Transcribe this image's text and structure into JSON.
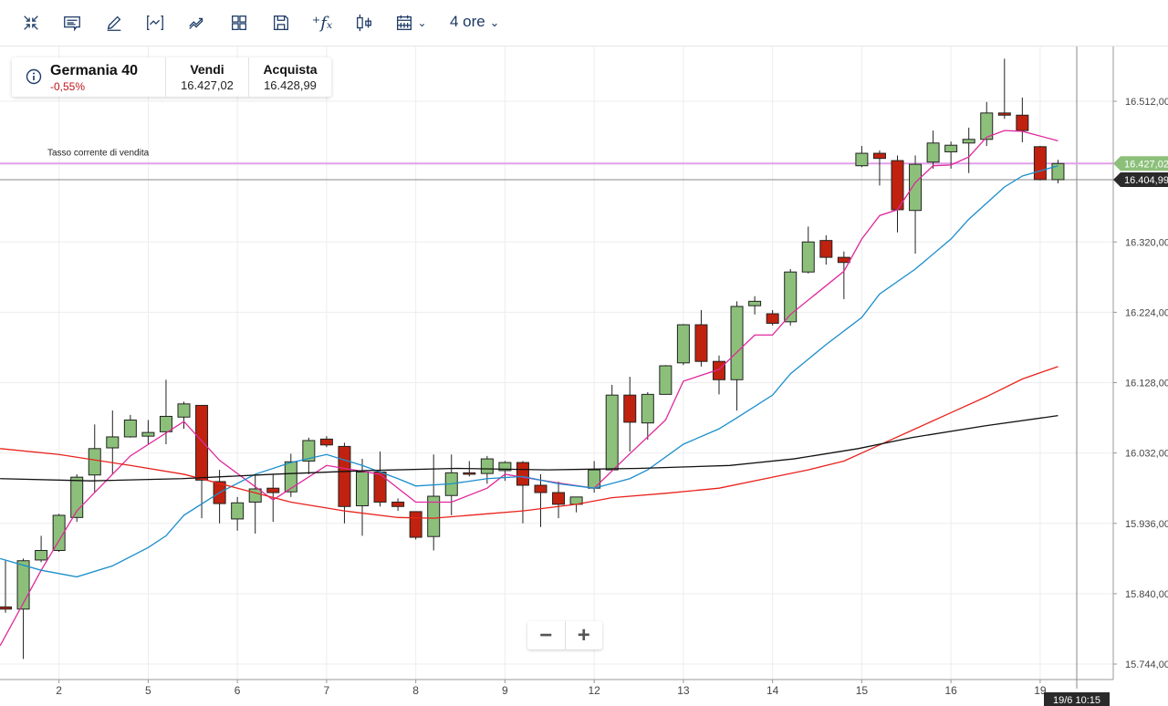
{
  "toolbar": {
    "icons": [
      "collapse-icon",
      "comment-icon",
      "draw-icon",
      "indicator-icon",
      "trend-icon",
      "layout-icon",
      "save-icon",
      "function-icon",
      "candle-type-icon",
      "calendar-icon"
    ],
    "period": "4 ore"
  },
  "instrument": {
    "name": "Germania 40",
    "change": "-0,55%",
    "sell_label": "Vendi",
    "sell": "16.427,02",
    "buy_label": "Acquista",
    "buy": "16.428,99"
  },
  "zoom": {
    "minus": "−",
    "plus": "+"
  },
  "colors": {
    "up": "#8cc07a",
    "down": "#c0220f",
    "ma_fast": "#e0279b",
    "ma_mid": "#1a8ecc",
    "ma_slow": "#e8221c",
    "ma_long": "#111111",
    "sell_line": "#e0a0e8",
    "sell_tag": "#8cc07a"
  },
  "chart_data": {
    "type": "candlestick",
    "sell_line_label": "Tasso corrente di vendita",
    "sell_price": 16427.02,
    "sell_tag": "16.427,02",
    "cursor_price": 16404.99,
    "cursor_tag": "16.404,99",
    "cursor_time": "19/6 10:15",
    "ylim": [
      15730,
      16580
    ],
    "y_ticks": [
      {
        "v": 16512,
        "label": "16.512,00"
      },
      {
        "v": 16320,
        "label": "16.320,00"
      },
      {
        "v": 16224,
        "label": "16.224,00"
      },
      {
        "v": 16128,
        "label": "16.128,00"
      },
      {
        "v": 16032,
        "label": "16.032,00"
      },
      {
        "v": 15936,
        "label": "15.936,00"
      },
      {
        "v": 15840,
        "label": "15.840,00"
      },
      {
        "v": 15744,
        "label": "15.744,00"
      }
    ],
    "x_ticks": [
      {
        "i": 3,
        "label": "2"
      },
      {
        "i": 8,
        "label": "5"
      },
      {
        "i": 13,
        "label": "6"
      },
      {
        "i": 18,
        "label": "7"
      },
      {
        "i": 23,
        "label": "8"
      },
      {
        "i": 28,
        "label": "9"
      },
      {
        "i": 33,
        "label": "12"
      },
      {
        "i": 38,
        "label": "13"
      },
      {
        "i": 43,
        "label": "14"
      },
      {
        "i": 48,
        "label": "15"
      },
      {
        "i": 53,
        "label": "16"
      },
      {
        "i": 58,
        "label": "19"
      }
    ],
    "candles_ohlc": [
      [
        15822,
        15885,
        15814,
        15819
      ],
      [
        15819,
        15888,
        15751,
        15885
      ],
      [
        15886,
        15919,
        15883,
        15899
      ],
      [
        15899,
        15949,
        15897,
        15947
      ],
      [
        15944,
        16003,
        15938,
        15999
      ],
      [
        16002,
        16071,
        15978,
        16038
      ],
      [
        16039,
        16090,
        16003,
        16054
      ],
      [
        16054,
        16084,
        16053,
        16077
      ],
      [
        16055,
        16077,
        16044,
        16060
      ],
      [
        16061,
        16132,
        16044,
        16082
      ],
      [
        16081,
        16102,
        16065,
        16099
      ],
      [
        16097,
        16097,
        15943,
        15995
      ],
      [
        15993,
        16009,
        15936,
        15963
      ],
      [
        15942,
        15972,
        15926,
        15964
      ],
      [
        15965,
        16003,
        15922,
        15983
      ],
      [
        15984,
        16003,
        15938,
        15978
      ],
      [
        15979,
        16031,
        15972,
        16020
      ],
      [
        16021,
        16053,
        16003,
        16049
      ],
      [
        16051,
        16055,
        16040,
        16043
      ],
      [
        16041,
        16046,
        15936,
        15959
      ],
      [
        15960,
        16024,
        15919,
        16006
      ],
      [
        16006,
        16034,
        15959,
        15965
      ],
      [
        15965,
        15970,
        15953,
        15959
      ],
      [
        15952,
        15952,
        15914,
        15917
      ],
      [
        15918,
        16030,
        15899,
        15973
      ],
      [
        15974,
        16030,
        15947,
        16005
      ],
      [
        16005,
        16021,
        16000,
        16003
      ],
      [
        16004,
        16028,
        15990,
        16024
      ],
      [
        16008,
        16021,
        15994,
        16019
      ],
      [
        16019,
        16021,
        15936,
        15988
      ],
      [
        15988,
        16003,
        15931,
        15978
      ],
      [
        15978,
        15993,
        15943,
        15962
      ],
      [
        15962,
        15972,
        15951,
        15972
      ],
      [
        15984,
        16021,
        15978,
        16009
      ],
      [
        16009,
        16125,
        16009,
        16111
      ],
      [
        16111,
        16136,
        16034,
        16074
      ],
      [
        16073,
        16115,
        16050,
        16112
      ],
      [
        16112,
        16152,
        16112,
        16151
      ],
      [
        16155,
        16208,
        16152,
        16207
      ],
      [
        16207,
        16227,
        16150,
        16157
      ],
      [
        16157,
        16165,
        16112,
        16132
      ],
      [
        16132,
        16239,
        16090,
        16232
      ],
      [
        16233,
        16246,
        16221,
        16239
      ],
      [
        16222,
        16227,
        16206,
        16209
      ],
      [
        16211,
        16283,
        16206,
        16279
      ],
      [
        16279,
        16341,
        16277,
        16320
      ],
      [
        16322,
        16329,
        16289,
        16299
      ],
      [
        16299,
        16307,
        16242,
        16292
      ],
      [
        16424,
        16451,
        16422,
        16441
      ],
      [
        16441,
        16445,
        16397,
        16434
      ],
      [
        16431,
        16438,
        16333,
        16364
      ],
      [
        16363,
        16438,
        16304,
        16426
      ],
      [
        16429,
        16472,
        16420,
        16455
      ],
      [
        16443,
        16457,
        16420,
        16452
      ],
      [
        16455,
        16476,
        16414,
        16460
      ],
      [
        16460,
        16511,
        16451,
        16496
      ],
      [
        16496,
        16570,
        16488,
        16493
      ],
      [
        16493,
        16517,
        16456,
        16472
      ],
      [
        16450,
        16451,
        16404,
        16405
      ],
      [
        16405,
        16432,
        16400,
        16427
      ]
    ],
    "ma_lines": [
      {
        "name": "ma_fast",
        "color": "#e0279b",
        "points": [
          [
            -0.3,
            15769
          ],
          [
            2,
            15872
          ],
          [
            4,
            15953
          ],
          [
            7,
            16028
          ],
          [
            10,
            16075
          ],
          [
            12,
            16022
          ],
          [
            15,
            15968
          ],
          [
            18,
            16015
          ],
          [
            21,
            16003
          ],
          [
            23,
            15965
          ],
          [
            25,
            15965
          ],
          [
            27,
            15984
          ],
          [
            28,
            16003
          ],
          [
            31,
            15991
          ],
          [
            33,
            15984
          ],
          [
            35,
            16031
          ],
          [
            37,
            16077
          ],
          [
            38,
            16130
          ],
          [
            40,
            16146
          ],
          [
            42,
            16193
          ],
          [
            43,
            16193
          ],
          [
            44,
            16221
          ],
          [
            47,
            16280
          ],
          [
            48,
            16324
          ],
          [
            49,
            16356
          ],
          [
            50,
            16364
          ],
          [
            51,
            16401
          ],
          [
            52,
            16424
          ],
          [
            53,
            16425
          ],
          [
            54,
            16436
          ],
          [
            55,
            16463
          ],
          [
            56,
            16472
          ],
          [
            57,
            16471
          ],
          [
            59,
            16458
          ]
        ]
      },
      {
        "name": "ma_mid",
        "color": "#1a8ecc",
        "points": [
          [
            -0.3,
            15888
          ],
          [
            2,
            15872
          ],
          [
            4,
            15863
          ],
          [
            6,
            15878
          ],
          [
            8,
            15903
          ],
          [
            9,
            15919
          ],
          [
            10,
            15947
          ],
          [
            12,
            15978
          ],
          [
            14,
            16003
          ],
          [
            16,
            16019
          ],
          [
            18,
            16030
          ],
          [
            20,
            16015
          ],
          [
            22,
            15997
          ],
          [
            23,
            15987
          ],
          [
            25,
            15990
          ],
          [
            27,
            15997
          ],
          [
            29,
            16000
          ],
          [
            31,
            15990
          ],
          [
            33,
            15984
          ],
          [
            35,
            15997
          ],
          [
            36,
            16009
          ],
          [
            38,
            16044
          ],
          [
            40,
            16065
          ],
          [
            41,
            16080
          ],
          [
            43,
            16111
          ],
          [
            44,
            16140
          ],
          [
            46,
            16180
          ],
          [
            48,
            16217
          ],
          [
            49,
            16249
          ],
          [
            51,
            16283
          ],
          [
            53,
            16324
          ],
          [
            54,
            16351
          ],
          [
            56,
            16395
          ],
          [
            57,
            16410
          ],
          [
            59,
            16424
          ]
        ]
      },
      {
        "name": "ma_slow",
        "color": "#e8221c",
        "points": [
          [
            -0.3,
            16038
          ],
          [
            3,
            16030
          ],
          [
            7,
            16015
          ],
          [
            10,
            16003
          ],
          [
            13,
            15984
          ],
          [
            16,
            15965
          ],
          [
            19,
            15953
          ],
          [
            22,
            15944
          ],
          [
            24,
            15943
          ],
          [
            27,
            15949
          ],
          [
            29,
            15953
          ],
          [
            32,
            15962
          ],
          [
            34,
            15971
          ],
          [
            37,
            15977
          ],
          [
            40,
            15984
          ],
          [
            43,
            15999
          ],
          [
            45,
            16009
          ],
          [
            47,
            16021
          ],
          [
            49,
            16043
          ],
          [
            51,
            16065
          ],
          [
            53,
            16087
          ],
          [
            55,
            16109
          ],
          [
            57,
            16133
          ],
          [
            59,
            16150
          ]
        ]
      },
      {
        "name": "ma_long",
        "color": "#111111",
        "points": [
          [
            -0.3,
            15997
          ],
          [
            4.8,
            15994
          ],
          [
            9.9,
            15997
          ],
          [
            15,
            16003
          ],
          [
            20.2,
            16008
          ],
          [
            25.3,
            16011
          ],
          [
            30.4,
            16009
          ],
          [
            35.5,
            16011
          ],
          [
            40.6,
            16015
          ],
          [
            44.2,
            16024
          ],
          [
            47.8,
            16038
          ],
          [
            50.8,
            16053
          ],
          [
            54.9,
            16069
          ],
          [
            59,
            16083
          ]
        ]
      }
    ]
  }
}
